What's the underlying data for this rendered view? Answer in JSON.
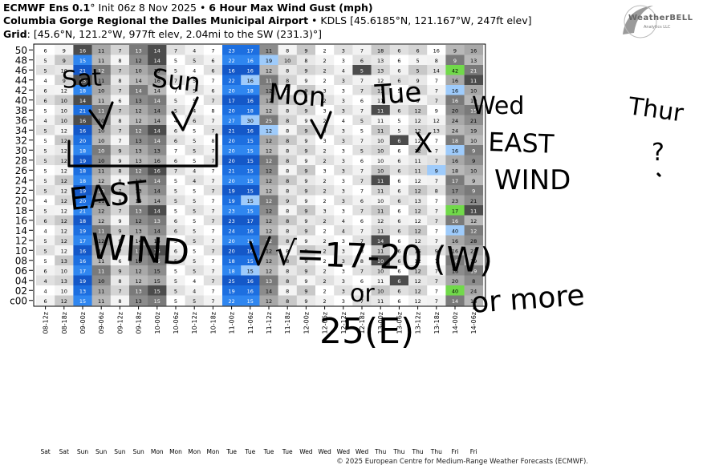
{
  "header": {
    "model": "ECMWF Ens 0.1",
    "degree": "°",
    "init": "Init 06z 8 Nov 2025",
    "bullet": "•",
    "product": "6 Hour Max Wind Gust (mph)",
    "location_bold": "Columbia Gorge Regional the Dalles Municipal Airport",
    "location_rest": "• KDLS [45.6185°N, 121.167°W, 247ft elev]",
    "grid_label": "Grid",
    "grid_rest": ": [45.6°N, 121.2°W, 977ft elev, 2.04mi to the SW (231.3)°]"
  },
  "logo": {
    "word": "WeatherBELL",
    "sub": "Analytics LLC"
  },
  "footer": "© 2025 European Centre for Medium-Range Weather Forecasts (ECMWF).",
  "annotations": {
    "sat": "Sat",
    "sun": "Sun",
    "mon": "Mon",
    "tue": "Tue",
    "wed": "Wed",
    "thur": "Thur",
    "check": "✓",
    "x": "X",
    "q": "?",
    "east_wind_left": [
      "EAST",
      "WIND"
    ],
    "east_wind_right": [
      "EAST",
      "WIND"
    ],
    "formula": "√=17-20 (W)",
    "or": "or",
    "e25": "25(E)",
    "ormore": "or more"
  },
  "chart_data": {
    "type": "heatmap",
    "ylabels": [
      "50",
      "48",
      "46",
      "44",
      "42",
      "40",
      "38",
      "36",
      "34",
      "32",
      "30",
      "28",
      "26",
      "24",
      "22",
      "20",
      "18",
      "16",
      "14",
      "12",
      "10",
      "08",
      "06",
      "04",
      "02",
      "c00"
    ],
    "xlabels": [
      "08-12z",
      "08-18z",
      "09-00z",
      "09-06z",
      "09-12z",
      "09-18z",
      "10-00z",
      "10-06z",
      "10-12z",
      "10-18z",
      "11-00z",
      "11-06z",
      "11-12z",
      "11-18z",
      "12-00z",
      "12-06z",
      "12-12z",
      "12-18z",
      "13-00z",
      "13-06z",
      "13-12z",
      "13-18z",
      "14-00z",
      "14-06z"
    ],
    "days": [
      "Sat",
      "Sat",
      "Sun",
      "Sun",
      "Sun",
      "Sun",
      "Mon",
      "Mon",
      "Mon",
      "Mon",
      "Tue",
      "Tue",
      "Tue",
      "Tue",
      "Wed",
      "Wed",
      "Wed",
      "Wed",
      "Thu",
      "Thu",
      "Thu",
      "Thu",
      "Fri",
      "Fri"
    ],
    "base": [
      5,
      10,
      18,
      11,
      10,
      13,
      14,
      5,
      5,
      7,
      20,
      16,
      13,
      9,
      8,
      2,
      3,
      7,
      10,
      6,
      9,
      7,
      13,
      14
    ],
    "colors": {
      "blue_dark": "#1565d6",
      "blue_light": "#9ecbfb",
      "green": "#71d94a",
      "gray_dark": "#4c4c4c"
    },
    "columns": [
      [
        6,
        5,
        5,
        4,
        6,
        6,
        5,
        4,
        5,
        5,
        5,
        5,
        5,
        5,
        5,
        4,
        5,
        6,
        4,
        5,
        5,
        5,
        6,
        4,
        4,
        6
      ],
      [
        9,
        9,
        10,
        9,
        12,
        10,
        10,
        10,
        12,
        12,
        12,
        12,
        12,
        12,
        12,
        12,
        12,
        12,
        12,
        12,
        12,
        13,
        10,
        13,
        10,
        12
      ],
      [
        16,
        15,
        21,
        13,
        18,
        14,
        21,
        16,
        16,
        20,
        18,
        19,
        18,
        18,
        19,
        20,
        21,
        18,
        19,
        17,
        16,
        16,
        17,
        19,
        13,
        15
      ],
      [
        11,
        11,
        12,
        11,
        10,
        11,
        11,
        10,
        10,
        10,
        10,
        10,
        11,
        12,
        10,
        11,
        12,
        12,
        11,
        12,
        10,
        11,
        11,
        10,
        11,
        11
      ],
      [
        7,
        8,
        7,
        8,
        7,
        6,
        7,
        8,
        7,
        7,
        9,
        9,
        8,
        8,
        7,
        8,
        7,
        9,
        9,
        9,
        7,
        6,
        9,
        8,
        7,
        8
      ],
      [
        13,
        12,
        10,
        14,
        14,
        13,
        12,
        12,
        12,
        13,
        13,
        13,
        12,
        13,
        13,
        14,
        13,
        12,
        13,
        14,
        13,
        12,
        12,
        12,
        13,
        13
      ],
      [
        14,
        14,
        15,
        16,
        14,
        14,
        14,
        14,
        14,
        14,
        13,
        16,
        16,
        14,
        14,
        14,
        14,
        13,
        14,
        14,
        15,
        15,
        15,
        15,
        15,
        15
      ],
      [
        7,
        5,
        5,
        7,
        7,
        5,
        5,
        4,
        6,
        6,
        7,
        6,
        7,
        5,
        5,
        5,
        5,
        6,
        6,
        5,
        6,
        5,
        5,
        5,
        5,
        5
      ],
      [
        4,
        5,
        4,
        5,
        5,
        5,
        4,
        6,
        5,
        5,
        5,
        5,
        4,
        4,
        5,
        5,
        5,
        5,
        5,
        5,
        5,
        5,
        5,
        4,
        4,
        5
      ],
      [
        7,
        6,
        6,
        7,
        6,
        7,
        8,
        7,
        7,
        8,
        7,
        7,
        7,
        7,
        7,
        7,
        7,
        7,
        7,
        7,
        7,
        7,
        7,
        7,
        7,
        7
      ],
      [
        23,
        22,
        16,
        22,
        20,
        17,
        20,
        27,
        21,
        20,
        20,
        20,
        21,
        20,
        19,
        19,
        23,
        23,
        24,
        20,
        20,
        18,
        18,
        25,
        19,
        22
      ],
      [
        17,
        16,
        16,
        16,
        18,
        16,
        18,
        30,
        16,
        15,
        15,
        15,
        15,
        15,
        15,
        15,
        15,
        17,
        16,
        16,
        16,
        15,
        15,
        16,
        16,
        15
      ],
      [
        11,
        19,
        12,
        11,
        12,
        12,
        12,
        25,
        12,
        12,
        12,
        12,
        12,
        12,
        12,
        12,
        12,
        12,
        12,
        12,
        12,
        12,
        12,
        13,
        14,
        12
      ],
      [
        8,
        10,
        8,
        8,
        7,
        7,
        8,
        8,
        8,
        8,
        8,
        8,
        8,
        8,
        8,
        9,
        8,
        8,
        8,
        8,
        8,
        8,
        8,
        8,
        8,
        8
      ],
      [
        9,
        8,
        9,
        9,
        9,
        9,
        9,
        9,
        9,
        9,
        9,
        9,
        9,
        9,
        9,
        9,
        9,
        9,
        9,
        9,
        9,
        9,
        9,
        9,
        9,
        9
      ],
      [
        2,
        2,
        2,
        2,
        3,
        2,
        3,
        2,
        3,
        3,
        2,
        2,
        3,
        2,
        2,
        2,
        3,
        2,
        2,
        2,
        2,
        2,
        2,
        2,
        2,
        2
      ],
      [
        3,
        3,
        4,
        3,
        3,
        3,
        3,
        4,
        3,
        3,
        3,
        3,
        3,
        3,
        3,
        3,
        3,
        4,
        4,
        3,
        3,
        3,
        3,
        3,
        3,
        3
      ],
      [
        7,
        6,
        5,
        7,
        7,
        6,
        7,
        5,
        5,
        7,
        5,
        6,
        7,
        7,
        7,
        6,
        7,
        6,
        7,
        7,
        8,
        8,
        7,
        6,
        6,
        7
      ],
      [
        18,
        13,
        13,
        12,
        11,
        11,
        11,
        11,
        11,
        10,
        10,
        10,
        10,
        11,
        11,
        10,
        11,
        12,
        11,
        14,
        11,
        10,
        10,
        11,
        10,
        11
      ],
      [
        6,
        6,
        6,
        6,
        5,
        6,
        6,
        5,
        5,
        6,
        6,
        6,
        6,
        6,
        6,
        6,
        6,
        6,
        6,
        6,
        6,
        6,
        6,
        6,
        6,
        6
      ],
      [
        6,
        5,
        5,
        9,
        9,
        9,
        12,
        12,
        12,
        12,
        12,
        11,
        11,
        12,
        12,
        13,
        12,
        12,
        12,
        12,
        15,
        12,
        12,
        12,
        12,
        12
      ],
      [
        16,
        8,
        14,
        7,
        7,
        7,
        9,
        12,
        13,
        7,
        7,
        7,
        9,
        7,
        8,
        7,
        7,
        7,
        7,
        7,
        9,
        7,
        7,
        7,
        7,
        7
      ],
      [
        9,
        9,
        42,
        16,
        16,
        16,
        20,
        24,
        24,
        18,
        16,
        16,
        18,
        17,
        17,
        23,
        17,
        16,
        40,
        16,
        16,
        16,
        16,
        20,
        40,
        14
      ],
      [
        16,
        13,
        21,
        11,
        10,
        19,
        15,
        21,
        19,
        10,
        9,
        9,
        10,
        9,
        9,
        21,
        11,
        12,
        12,
        28,
        21,
        19,
        19,
        8,
        24,
        16
      ]
    ],
    "greens": [
      [
        2,
        22
      ],
      [
        16,
        22
      ],
      [
        24,
        22
      ]
    ],
    "darks": [
      [
        0,
        2
      ],
      [
        0,
        6
      ],
      [
        3,
        2
      ],
      [
        5,
        2
      ],
      [
        7,
        2
      ],
      [
        1,
        6
      ],
      [
        12,
        6
      ],
      [
        8,
        6
      ],
      [
        16,
        6
      ],
      [
        20,
        6
      ],
      [
        24,
        6
      ],
      [
        2,
        17
      ],
      [
        6,
        18
      ],
      [
        13,
        18
      ],
      [
        19,
        18
      ],
      [
        21,
        18
      ],
      [
        9,
        19
      ],
      [
        23,
        19
      ],
      [
        3,
        23
      ],
      [
        16,
        23
      ]
    ],
    "lights": [
      [
        3,
        11
      ],
      [
        7,
        11
      ],
      [
        15,
        11
      ],
      [
        22,
        11
      ],
      [
        1,
        12
      ],
      [
        8,
        12
      ],
      [
        10,
        22
      ],
      [
        12,
        21
      ],
      [
        4,
        22
      ],
      [
        18,
        22
      ]
    ]
  }
}
